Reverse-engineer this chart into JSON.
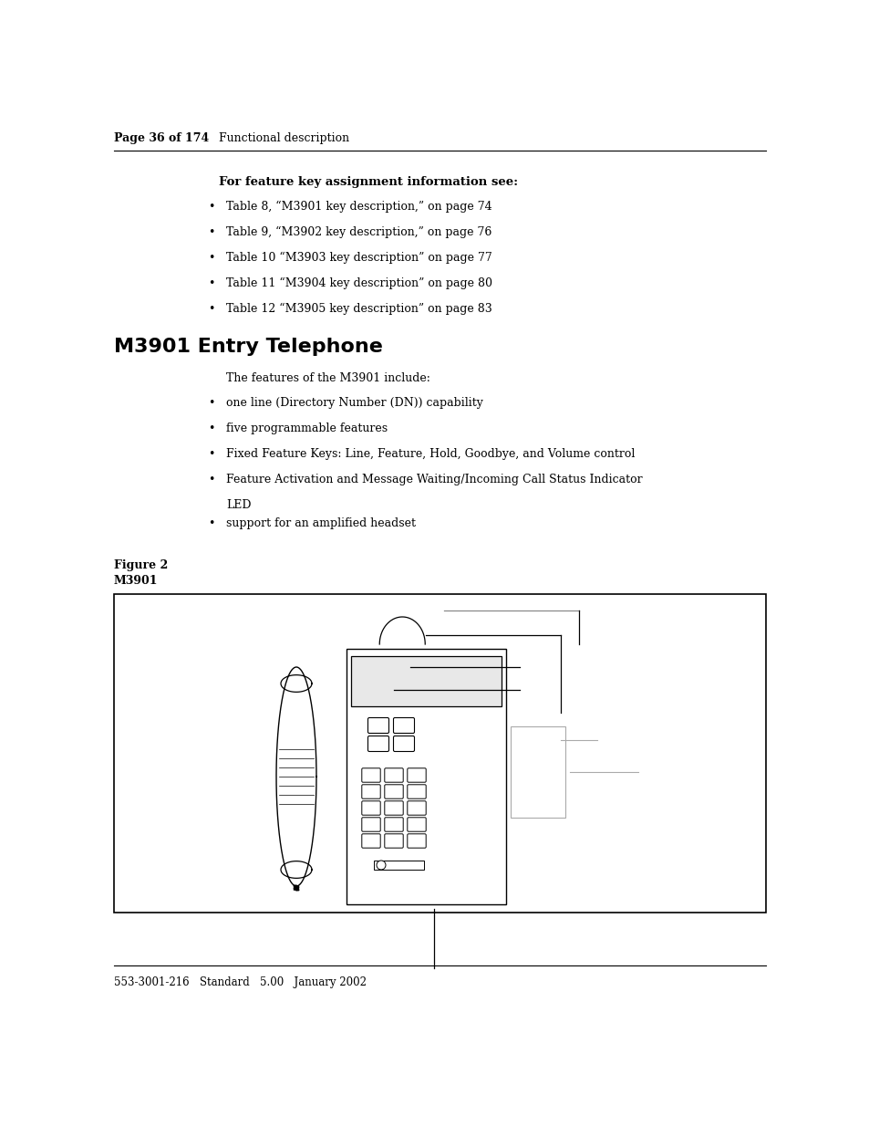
{
  "page_header_bold": "Page 36 of 174",
  "page_header_normal": "Functional description",
  "section_bold_title": "For feature key assignment information see:",
  "bullets_section1": [
    "Table 8, “M3901 key description,” on page 74",
    "Table 9, “M3902 key description,” on page 76",
    "Table 10 “M3903 key description” on page 77",
    "Table 11 “M3904 key description” on page 80",
    "Table 12 “M3905 key description” on page 83"
  ],
  "main_title": "M3901 Entry Telephone",
  "intro_text": "The features of the M3901 include:",
  "bullets_section2": [
    "one line (Directory Number (DN)) capability",
    "five programmable features",
    "Fixed Feature Keys: Line, Feature, Hold, Goodbye, and Volume control",
    "Feature Activation and Message Waiting/Incoming Call Status Indicator\nLED",
    "support for an amplified headset"
  ],
  "figure_label": "Figure 2",
  "figure_sublabel": "M3901",
  "footer_text": "553-3001-216   Standard   5.00   January 2002",
  "bg_color": "#ffffff",
  "text_color": "#000000"
}
